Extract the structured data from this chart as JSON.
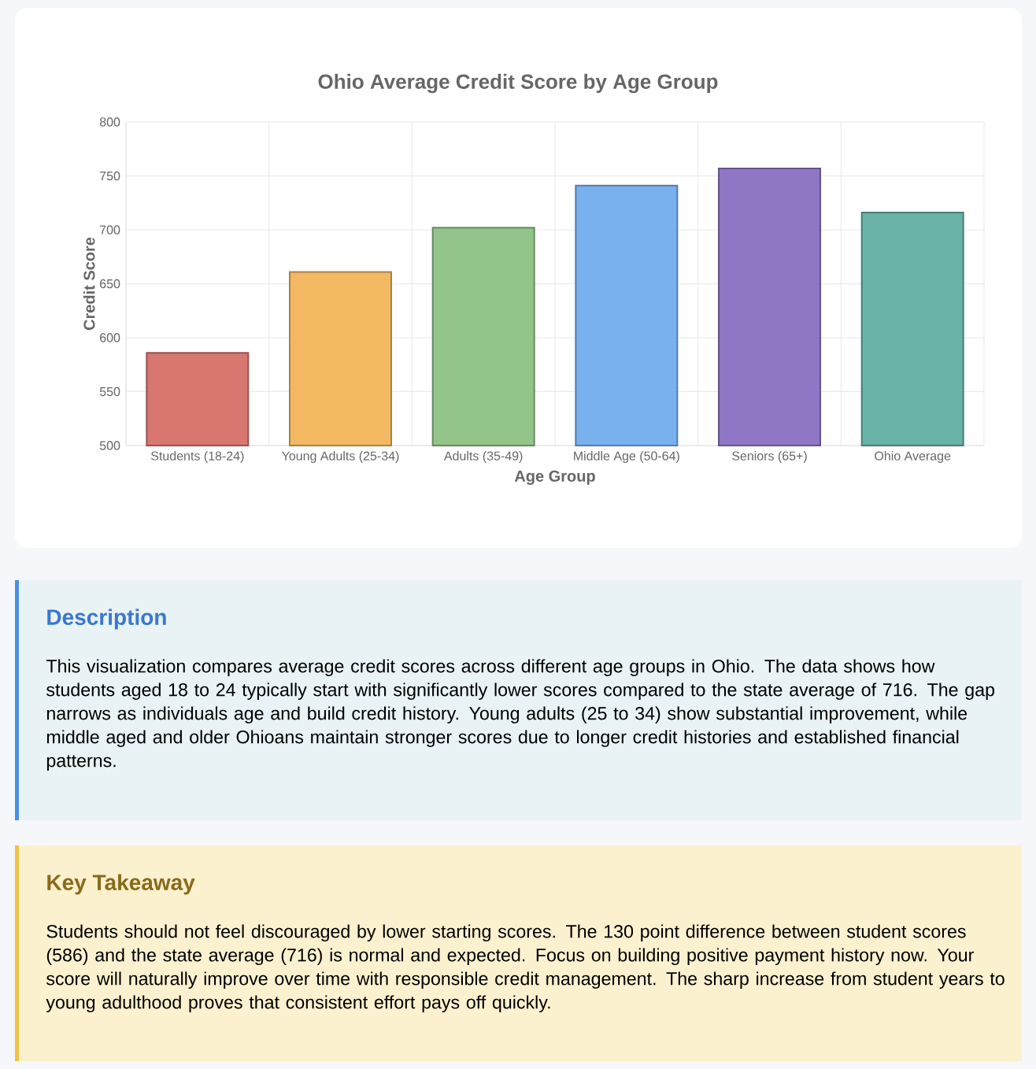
{
  "chart_data": {
    "type": "bar",
    "title": "Ohio Average Credit Score by Age Group",
    "xlabel": "Age Group",
    "ylabel": "Credit Score",
    "categories": [
      "Students (18-24)",
      "Young Adults (25-34)",
      "Adults (35-49)",
      "Middle Age (50-64)",
      "Seniors (65+)",
      "Ohio Average"
    ],
    "values": [
      586,
      661,
      702,
      741,
      757,
      716
    ],
    "colors": [
      "#d77770",
      "#f2b862",
      "#93c58a",
      "#78b1ee",
      "#8f77c6",
      "#69b3a9"
    ],
    "ylim": [
      500,
      800
    ],
    "yticks": [
      500,
      550,
      600,
      650,
      700,
      750,
      800
    ],
    "grid": true,
    "annotations": [
      "Description",
      "This visualization compares average credit scores across different age groups in Ohio. The data shows how students aged 18 to 24 typically start with significantly lower scores compared to the state average of 716. The gap narrows as individuals age and build credit history. Young adults (25 to 34) show substantial improvement, while middle aged and older Ohioans maintain stronger scores due to longer credit histories and established financial patterns.",
      "Key Takeaway",
      "Students should not feel discouraged by lower starting scores. The 130 point difference between student scores (586) and the state average (716) is normal and expected. Focus on building positive payment history now. Your score will naturally improve over time with responsible credit management. The sharp increase from student years to young adulthood proves that consistent effort pays off quickly."
    ]
  }
}
